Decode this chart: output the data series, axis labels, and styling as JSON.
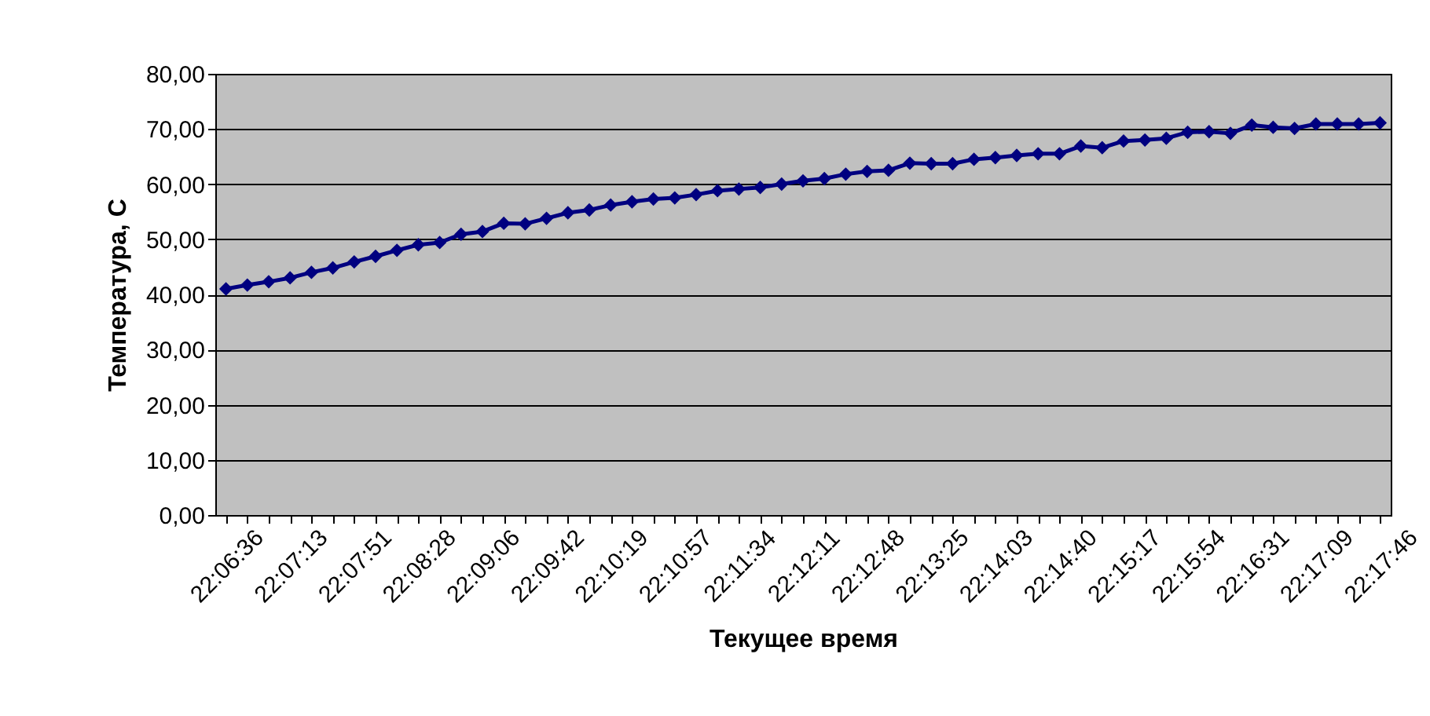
{
  "chart_data": {
    "type": "line",
    "xlabel": "Текущее время",
    "ylabel": "Температура, С",
    "categories": [
      "22:06:36",
      null,
      null,
      "22:07:13",
      null,
      null,
      "22:07:51",
      null,
      null,
      "22:08:28",
      null,
      null,
      "22:09:06",
      null,
      null,
      "22:09:42",
      null,
      null,
      "22:10:19",
      null,
      null,
      "22:10:57",
      null,
      null,
      "22:11:34",
      null,
      null,
      "22:12:11",
      null,
      null,
      "22:12:48",
      null,
      null,
      "22:13:25",
      null,
      null,
      "22:14:03",
      null,
      null,
      "22:14:40",
      null,
      null,
      "22:15:17",
      null,
      null,
      "22:15:54",
      null,
      null,
      "22:16:31",
      null,
      null,
      "22:17:09",
      null,
      null,
      "22:17:46"
    ],
    "series": [
      {
        "color": "#000080",
        "values": [
          41.0,
          41.7,
          42.3,
          43.0,
          44.0,
          44.8,
          45.9,
          46.9,
          48.0,
          49.0,
          49.4,
          50.9,
          51.4,
          52.9,
          52.8,
          53.8,
          54.8,
          55.3,
          56.2,
          56.8,
          57.3,
          57.5,
          58.1,
          58.8,
          59.1,
          59.4,
          60.0,
          60.6,
          61.0,
          61.8,
          62.3,
          62.5,
          63.8,
          63.7,
          63.7,
          64.5,
          64.8,
          65.2,
          65.5,
          65.5,
          66.9,
          66.6,
          67.8,
          68.0,
          68.3,
          69.4,
          69.5,
          69.2,
          70.7,
          70.3,
          70.1,
          70.9,
          70.9,
          70.9,
          71.1
        ]
      }
    ],
    "ylim": [
      0,
      80
    ],
    "yticks": [
      {
        "value": 0,
        "label": "0,00"
      },
      {
        "value": 10,
        "label": "10,00"
      },
      {
        "value": 20,
        "label": "20,00"
      },
      {
        "value": 30,
        "label": "30,00"
      },
      {
        "value": 40,
        "label": "40,00"
      },
      {
        "value": 50,
        "label": "50,00"
      },
      {
        "value": 60,
        "label": "60,00"
      },
      {
        "value": 70,
        "label": "70,00"
      },
      {
        "value": 80,
        "label": "80,00"
      }
    ],
    "grid": "y",
    "marker": "diamond",
    "line_style": "solid"
  }
}
